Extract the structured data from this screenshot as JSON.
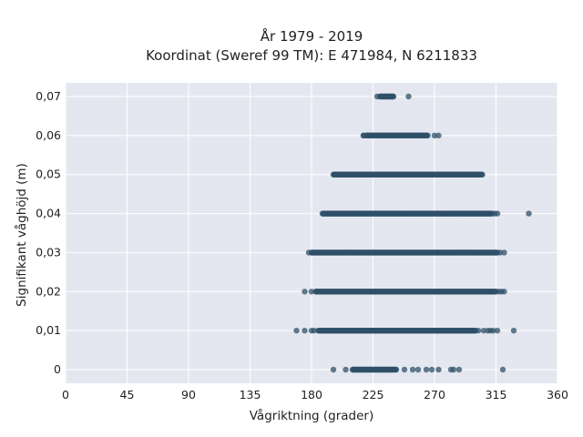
{
  "chart_data": {
    "type": "scatter",
    "title_line1": "År 1979 - 2019",
    "title_line2": "Koordinat (Sweref 99 TM): E 471984, N 6211833",
    "xlabel": "Vågriktning (grader)",
    "ylabel": "Signifikant våghöjd (m)",
    "xlim": [
      0,
      360
    ],
    "ylim": [
      -0.0035,
      0.0735
    ],
    "xticks": [
      0,
      45,
      90,
      135,
      180,
      225,
      270,
      315,
      360
    ],
    "xtick_labels": [
      "0",
      "45",
      "90",
      "135",
      "180",
      "225",
      "270",
      "315",
      "360"
    ],
    "yticks": [
      0,
      0.01,
      0.02,
      0.03,
      0.04,
      0.05,
      0.06,
      0.07
    ],
    "ytick_labels": [
      "0",
      "0,01",
      "0,02",
      "0,03",
      "0,04",
      "0,05",
      "0,06",
      "0,07"
    ],
    "grid": true,
    "colors": {
      "plot_background": "#e5e7f0",
      "marker": "#2f5068",
      "grid": "#ffffff"
    },
    "bands": [
      {
        "y": 0.0,
        "dense_range": [
          210,
          242
        ],
        "outliers": [
          196,
          205,
          212,
          248,
          254,
          258,
          264,
          268,
          273,
          282,
          284,
          288,
          320
        ]
      },
      {
        "y": 0.01,
        "dense_range": [
          185,
          300
        ],
        "outliers": [
          169,
          175,
          180,
          182,
          302,
          306,
          309,
          311,
          313,
          316,
          328
        ]
      },
      {
        "y": 0.02,
        "dense_range": [
          183,
          315
        ],
        "outliers": [
          175,
          180,
          317,
          319,
          321
        ]
      },
      {
        "y": 0.03,
        "dense_range": [
          180,
          316
        ],
        "outliers": [
          178,
          318,
          321
        ]
      },
      {
        "y": 0.04,
        "dense_range": [
          188,
          312
        ],
        "outliers": [
          314,
          316,
          339
        ]
      },
      {
        "y": 0.05,
        "dense_range": [
          196,
          305
        ],
        "outliers": []
      },
      {
        "y": 0.06,
        "dense_range": [
          220,
          265
        ],
        "outliers": [
          218,
          218,
          270,
          273
        ]
      },
      {
        "y": 0.07,
        "dense_range": [
          230,
          240
        ],
        "outliers": [
          228,
          251
        ]
      }
    ]
  }
}
